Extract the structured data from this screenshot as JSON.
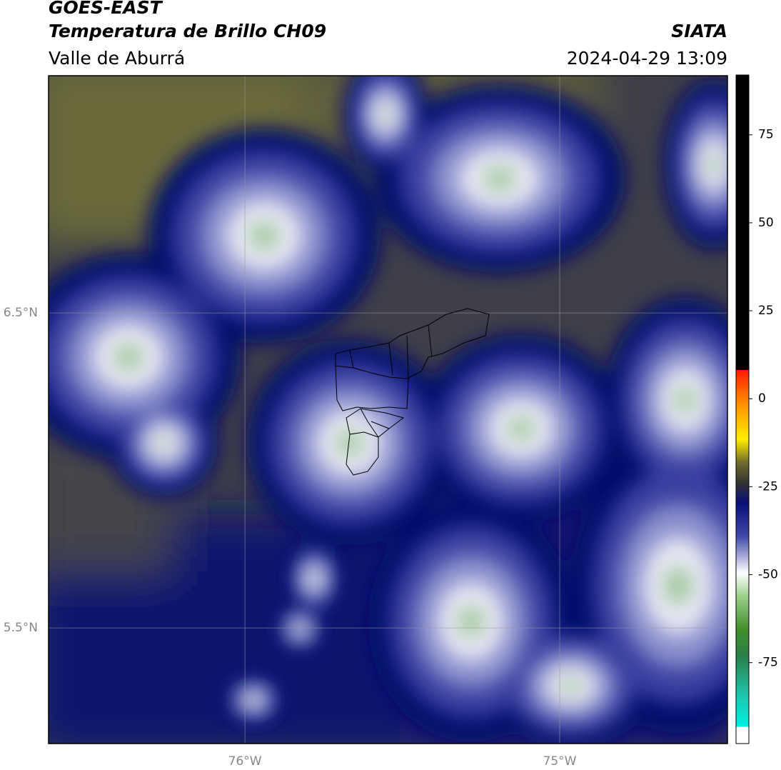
{
  "header": {
    "title": "GOES-EAST",
    "subtitle": "Temperatura de Brillo CH09",
    "region": "Valle de Aburrá",
    "source": "SIATA",
    "datetime": "2024-04-29 13:09"
  },
  "map": {
    "lonlim": [
      -76.624,
      -74.467
    ],
    "latlim": [
      5.133,
      7.253
    ],
    "lat_lines": [
      {
        "value": 6.5,
        "label": "6.5°N"
      },
      {
        "value": 5.5,
        "label": "5.5°N"
      }
    ],
    "lon_lines": [
      {
        "value": -76,
        "label": "76°W"
      },
      {
        "value": -75,
        "label": "75°W"
      }
    ]
  },
  "colorbar": {
    "lim": [
      -98,
      92
    ],
    "ticks": [
      75,
      50,
      25,
      0,
      -25,
      -50,
      -75
    ]
  }
}
